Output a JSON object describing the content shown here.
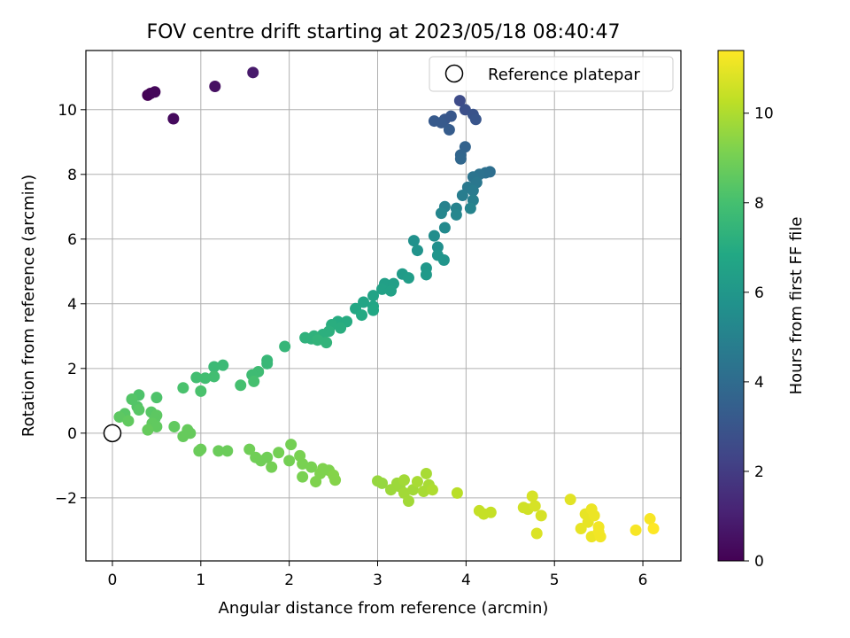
{
  "chart_data": {
    "type": "scatter",
    "title": "FOV centre drift starting at 2023/05/18 08:40:47",
    "xlabel": "Angular distance from reference (arcmin)",
    "ylabel": "Rotation from reference (arcmin)",
    "xlim": [
      -0.3,
      6.43
    ],
    "ylim": [
      -3.95,
      11.83
    ],
    "xticks": [
      0,
      1,
      2,
      3,
      4,
      5,
      6
    ],
    "yticks": [
      -2,
      0,
      2,
      4,
      6,
      8,
      10
    ],
    "grid": true,
    "legend": {
      "position": "top-right",
      "entries": [
        "Reference platepar"
      ]
    },
    "reference_point": {
      "x": 0,
      "y": 0
    },
    "colorbar": {
      "label": "Hours from first FF file",
      "range": [
        0,
        11.4
      ],
      "ticks": [
        0,
        2,
        4,
        6,
        8,
        10
      ],
      "colormap": "viridis"
    },
    "points": [
      {
        "x": 0.4,
        "y": 10.45,
        "c": 0.0
      },
      {
        "x": 0.43,
        "y": 10.5,
        "c": 0.1
      },
      {
        "x": 0.48,
        "y": 10.55,
        "c": 0.2
      },
      {
        "x": 0.69,
        "y": 9.72,
        "c": 0.3
      },
      {
        "x": 1.16,
        "y": 10.72,
        "c": 0.5
      },
      {
        "x": 1.59,
        "y": 11.15,
        "c": 0.8
      },
      {
        "x": 3.93,
        "y": 10.28,
        "c": 2.6
      },
      {
        "x": 3.99,
        "y": 10.0,
        "c": 2.8
      },
      {
        "x": 4.08,
        "y": 9.85,
        "c": 2.9
      },
      {
        "x": 4.11,
        "y": 9.7,
        "c": 3.0
      },
      {
        "x": 3.83,
        "y": 9.8,
        "c": 3.1
      },
      {
        "x": 3.76,
        "y": 9.7,
        "c": 3.1
      },
      {
        "x": 3.64,
        "y": 9.65,
        "c": 3.2
      },
      {
        "x": 3.72,
        "y": 9.6,
        "c": 3.2
      },
      {
        "x": 3.81,
        "y": 9.38,
        "c": 3.3
      },
      {
        "x": 3.99,
        "y": 8.85,
        "c": 3.6
      },
      {
        "x": 3.94,
        "y": 8.6,
        "c": 3.7
      },
      {
        "x": 3.94,
        "y": 8.48,
        "c": 3.8
      },
      {
        "x": 4.27,
        "y": 8.08,
        "c": 4.1
      },
      {
        "x": 4.22,
        "y": 8.05,
        "c": 4.2
      },
      {
        "x": 4.15,
        "y": 8.0,
        "c": 4.3
      },
      {
        "x": 4.08,
        "y": 7.92,
        "c": 4.4
      },
      {
        "x": 4.12,
        "y": 7.75,
        "c": 4.5
      },
      {
        "x": 4.02,
        "y": 7.6,
        "c": 4.6
      },
      {
        "x": 4.08,
        "y": 7.5,
        "c": 4.7
      },
      {
        "x": 3.96,
        "y": 7.35,
        "c": 4.8
      },
      {
        "x": 4.08,
        "y": 7.2,
        "c": 4.9
      },
      {
        "x": 3.76,
        "y": 7.0,
        "c": 5.0
      },
      {
        "x": 3.89,
        "y": 6.95,
        "c": 5.0
      },
      {
        "x": 4.05,
        "y": 6.95,
        "c": 5.1
      },
      {
        "x": 3.72,
        "y": 6.8,
        "c": 5.2
      },
      {
        "x": 3.89,
        "y": 6.75,
        "c": 5.2
      },
      {
        "x": 3.76,
        "y": 6.35,
        "c": 5.4
      },
      {
        "x": 3.64,
        "y": 6.1,
        "c": 5.5
      },
      {
        "x": 3.68,
        "y": 5.75,
        "c": 5.6
      },
      {
        "x": 3.41,
        "y": 5.95,
        "c": 5.7
      },
      {
        "x": 3.45,
        "y": 5.65,
        "c": 5.8
      },
      {
        "x": 3.68,
        "y": 5.5,
        "c": 5.9
      },
      {
        "x": 3.75,
        "y": 5.35,
        "c": 5.9
      },
      {
        "x": 3.55,
        "y": 5.1,
        "c": 6.0
      },
      {
        "x": 3.55,
        "y": 4.9,
        "c": 6.1
      },
      {
        "x": 3.28,
        "y": 4.92,
        "c": 6.2
      },
      {
        "x": 3.35,
        "y": 4.8,
        "c": 6.3
      },
      {
        "x": 3.08,
        "y": 4.62,
        "c": 6.4
      },
      {
        "x": 3.18,
        "y": 4.62,
        "c": 6.4
      },
      {
        "x": 3.05,
        "y": 4.45,
        "c": 6.5
      },
      {
        "x": 3.15,
        "y": 4.4,
        "c": 6.5
      },
      {
        "x": 2.95,
        "y": 4.25,
        "c": 6.6
      },
      {
        "x": 2.84,
        "y": 4.05,
        "c": 6.7
      },
      {
        "x": 2.95,
        "y": 3.92,
        "c": 6.7
      },
      {
        "x": 2.75,
        "y": 3.85,
        "c": 6.8
      },
      {
        "x": 2.95,
        "y": 3.8,
        "c": 6.8
      },
      {
        "x": 2.82,
        "y": 3.65,
        "c": 6.9
      },
      {
        "x": 2.55,
        "y": 3.45,
        "c": 7.0
      },
      {
        "x": 2.65,
        "y": 3.45,
        "c": 7.0
      },
      {
        "x": 2.48,
        "y": 3.35,
        "c": 7.1
      },
      {
        "x": 2.58,
        "y": 3.25,
        "c": 7.1
      },
      {
        "x": 2.45,
        "y": 3.15,
        "c": 7.2
      },
      {
        "x": 2.38,
        "y": 3.05,
        "c": 7.2
      },
      {
        "x": 2.28,
        "y": 3.0,
        "c": 7.3
      },
      {
        "x": 2.18,
        "y": 2.95,
        "c": 7.3
      },
      {
        "x": 2.25,
        "y": 2.92,
        "c": 7.3
      },
      {
        "x": 2.32,
        "y": 2.88,
        "c": 7.4
      },
      {
        "x": 2.42,
        "y": 2.8,
        "c": 7.4
      },
      {
        "x": 1.95,
        "y": 2.68,
        "c": 7.5
      },
      {
        "x": 1.75,
        "y": 2.25,
        "c": 7.6
      },
      {
        "x": 1.75,
        "y": 2.15,
        "c": 7.6
      },
      {
        "x": 1.25,
        "y": 2.1,
        "c": 7.7
      },
      {
        "x": 1.15,
        "y": 2.05,
        "c": 7.7
      },
      {
        "x": 1.65,
        "y": 1.9,
        "c": 7.8
      },
      {
        "x": 1.58,
        "y": 1.8,
        "c": 7.8
      },
      {
        "x": 1.15,
        "y": 1.75,
        "c": 7.9
      },
      {
        "x": 1.05,
        "y": 1.7,
        "c": 7.9
      },
      {
        "x": 0.95,
        "y": 1.72,
        "c": 7.9
      },
      {
        "x": 1.6,
        "y": 1.6,
        "c": 8.0
      },
      {
        "x": 1.45,
        "y": 1.48,
        "c": 8.0
      },
      {
        "x": 0.8,
        "y": 1.4,
        "c": 8.1
      },
      {
        "x": 1.0,
        "y": 1.3,
        "c": 8.1
      },
      {
        "x": 0.3,
        "y": 1.18,
        "c": 8.2
      },
      {
        "x": 0.5,
        "y": 1.1,
        "c": 8.2
      },
      {
        "x": 0.22,
        "y": 1.05,
        "c": 8.3
      },
      {
        "x": 0.28,
        "y": 0.82,
        "c": 8.3
      },
      {
        "x": 0.3,
        "y": 0.72,
        "c": 8.4
      },
      {
        "x": 0.44,
        "y": 0.65,
        "c": 8.4
      },
      {
        "x": 0.14,
        "y": 0.6,
        "c": 8.4
      },
      {
        "x": 0.08,
        "y": 0.5,
        "c": 8.5
      },
      {
        "x": 0.5,
        "y": 0.55,
        "c": 8.5
      },
      {
        "x": 0.48,
        "y": 0.45,
        "c": 8.5
      },
      {
        "x": 0.18,
        "y": 0.38,
        "c": 8.6
      },
      {
        "x": 0.45,
        "y": 0.3,
        "c": 8.6
      },
      {
        "x": 0.5,
        "y": 0.2,
        "c": 8.6
      },
      {
        "x": 0.7,
        "y": 0.2,
        "c": 8.6
      },
      {
        "x": 0.4,
        "y": 0.1,
        "c": 8.7
      },
      {
        "x": 0.85,
        "y": 0.1,
        "c": 8.7
      },
      {
        "x": 0.8,
        "y": -0.1,
        "c": 8.7
      },
      {
        "x": 0.88,
        "y": 0.0,
        "c": 8.7
      },
      {
        "x": 1.0,
        "y": -0.5,
        "c": 8.8
      },
      {
        "x": 0.98,
        "y": -0.55,
        "c": 8.8
      },
      {
        "x": 1.2,
        "y": -0.55,
        "c": 8.8
      },
      {
        "x": 1.3,
        "y": -0.55,
        "c": 8.8
      },
      {
        "x": 1.55,
        "y": -0.5,
        "c": 8.9
      },
      {
        "x": 1.62,
        "y": -0.75,
        "c": 8.9
      },
      {
        "x": 1.68,
        "y": -0.85,
        "c": 8.9
      },
      {
        "x": 1.75,
        "y": -0.75,
        "c": 8.9
      },
      {
        "x": 1.8,
        "y": -1.05,
        "c": 9.0
      },
      {
        "x": 1.88,
        "y": -0.6,
        "c": 9.0
      },
      {
        "x": 2.02,
        "y": -0.35,
        "c": 9.0
      },
      {
        "x": 2.0,
        "y": -0.85,
        "c": 9.0
      },
      {
        "x": 2.12,
        "y": -0.7,
        "c": 9.1
      },
      {
        "x": 2.15,
        "y": -0.95,
        "c": 9.1
      },
      {
        "x": 2.15,
        "y": -1.35,
        "c": 9.1
      },
      {
        "x": 2.25,
        "y": -1.05,
        "c": 9.1
      },
      {
        "x": 2.3,
        "y": -1.5,
        "c": 9.2
      },
      {
        "x": 2.35,
        "y": -1.25,
        "c": 9.2
      },
      {
        "x": 2.38,
        "y": -1.1,
        "c": 9.2
      },
      {
        "x": 2.45,
        "y": -1.15,
        "c": 9.2
      },
      {
        "x": 2.5,
        "y": -1.3,
        "c": 9.3
      },
      {
        "x": 2.52,
        "y": -1.45,
        "c": 9.3
      },
      {
        "x": 3.0,
        "y": -1.48,
        "c": 9.6
      },
      {
        "x": 3.05,
        "y": -1.55,
        "c": 9.6
      },
      {
        "x": 3.15,
        "y": -1.75,
        "c": 9.7
      },
      {
        "x": 3.22,
        "y": -1.55,
        "c": 9.7
      },
      {
        "x": 3.25,
        "y": -1.65,
        "c": 9.7
      },
      {
        "x": 3.3,
        "y": -1.45,
        "c": 9.8
      },
      {
        "x": 3.3,
        "y": -1.85,
        "c": 9.8
      },
      {
        "x": 3.35,
        "y": -2.1,
        "c": 9.8
      },
      {
        "x": 3.4,
        "y": -1.75,
        "c": 9.8
      },
      {
        "x": 3.45,
        "y": -1.5,
        "c": 9.9
      },
      {
        "x": 3.52,
        "y": -1.8,
        "c": 9.9
      },
      {
        "x": 3.55,
        "y": -1.25,
        "c": 9.9
      },
      {
        "x": 3.58,
        "y": -1.6,
        "c": 9.9
      },
      {
        "x": 3.62,
        "y": -1.75,
        "c": 10.0
      },
      {
        "x": 3.9,
        "y": -1.85,
        "c": 10.2
      },
      {
        "x": 4.15,
        "y": -2.4,
        "c": 10.4
      },
      {
        "x": 4.2,
        "y": -2.5,
        "c": 10.4
      },
      {
        "x": 4.28,
        "y": -2.45,
        "c": 10.4
      },
      {
        "x": 4.65,
        "y": -2.3,
        "c": 10.6
      },
      {
        "x": 4.7,
        "y": -2.35,
        "c": 10.6
      },
      {
        "x": 4.75,
        "y": -1.95,
        "c": 10.7
      },
      {
        "x": 4.78,
        "y": -2.25,
        "c": 10.7
      },
      {
        "x": 4.85,
        "y": -2.55,
        "c": 10.7
      },
      {
        "x": 4.8,
        "y": -3.1,
        "c": 10.8
      },
      {
        "x": 5.18,
        "y": -2.05,
        "c": 10.9
      },
      {
        "x": 5.3,
        "y": -2.95,
        "c": 11.0
      },
      {
        "x": 5.35,
        "y": -2.5,
        "c": 11.0
      },
      {
        "x": 5.38,
        "y": -2.75,
        "c": 11.0
      },
      {
        "x": 5.42,
        "y": -2.35,
        "c": 11.1
      },
      {
        "x": 5.45,
        "y": -2.55,
        "c": 11.1
      },
      {
        "x": 5.42,
        "y": -3.2,
        "c": 11.1
      },
      {
        "x": 5.5,
        "y": -2.9,
        "c": 11.2
      },
      {
        "x": 5.52,
        "y": -3.2,
        "c": 11.2
      },
      {
        "x": 5.5,
        "y": -3.05,
        "c": 11.2
      },
      {
        "x": 5.92,
        "y": -3.0,
        "c": 11.3
      },
      {
        "x": 6.08,
        "y": -2.65,
        "c": 11.3
      },
      {
        "x": 6.12,
        "y": -2.95,
        "c": 11.4
      }
    ]
  }
}
